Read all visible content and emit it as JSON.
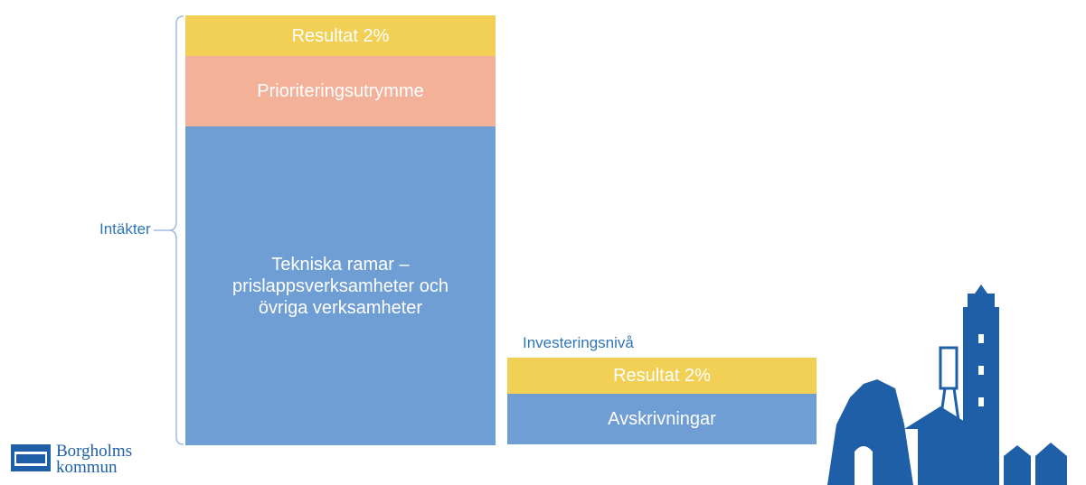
{
  "income_stack": {
    "label": "Intäkter",
    "blocks": [
      "Resultat 2%",
      "Prioriteringsutrymme",
      "Tekniska ramar – prislappsverksamheter och övriga verksamheter"
    ]
  },
  "investment_stack": {
    "label": "Investeringsnivå",
    "blocks": [
      "Resultat 2%",
      "Avskrivningar"
    ]
  },
  "logo": {
    "line1": "Borgholms",
    "line2": "kommun"
  }
}
